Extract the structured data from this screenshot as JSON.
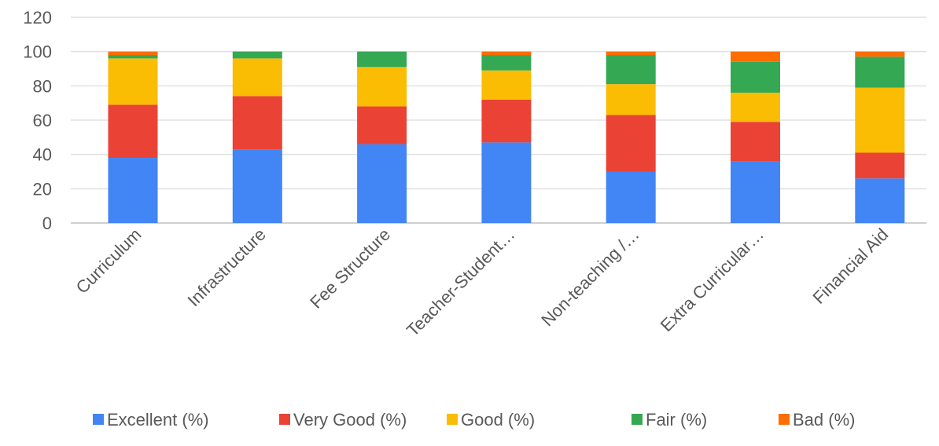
{
  "chart_data": {
    "type": "bar",
    "stacked": true,
    "categories": [
      "Curriculum",
      "Infrastructure",
      "Fee Structure",
      "Teacher-Student…",
      "Non-teaching /…",
      "Extra Curricular…",
      "Financial Aid"
    ],
    "series": [
      {
        "name": "Excellent (%)",
        "color": "#4285F4",
        "values": [
          38,
          43,
          46,
          47,
          30,
          36,
          26
        ]
      },
      {
        "name": "Very Good (%)",
        "color": "#EA4335",
        "values": [
          31,
          31,
          22,
          25,
          33,
          23,
          15
        ]
      },
      {
        "name": "Good (%)",
        "color": "#FBBC04",
        "values": [
          27,
          22,
          23,
          17,
          18,
          17,
          38
        ]
      },
      {
        "name": "Fair (%)",
        "color": "#34A853",
        "values": [
          2,
          4,
          9,
          9,
          17,
          18,
          18
        ]
      },
      {
        "name": "Bad (%)",
        "color": "#FF6D01",
        "values": [
          2,
          0,
          0,
          2,
          2,
          6,
          3
        ]
      }
    ],
    "yticks": [
      "0",
      "20",
      "40",
      "60",
      "80",
      "100",
      "120"
    ],
    "ylim": [
      0,
      120
    ],
    "grid": true,
    "legend_position": "bottom"
  }
}
